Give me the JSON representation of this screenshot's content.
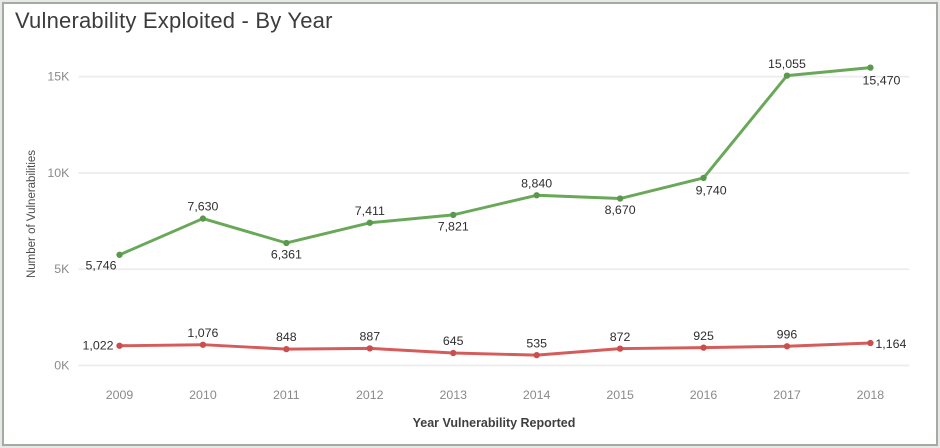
{
  "window": {
    "title": "Vulnerability Exploited - By Year"
  },
  "chart_data": {
    "type": "line",
    "title": "Vulnerability Exploited - By Year",
    "xlabel": "Year Vulnerability Reported",
    "ylabel": "Number of Vulnerabilities",
    "categories": [
      "2009",
      "2010",
      "2011",
      "2012",
      "2013",
      "2014",
      "2015",
      "2016",
      "2017",
      "2018"
    ],
    "yticks": {
      "values": [
        0,
        5000,
        10000,
        15000
      ],
      "labels": [
        "0K",
        "5K",
        "10K",
        "15K"
      ]
    },
    "ylim": [
      0,
      16500
    ],
    "grid": "horizontal-only",
    "legend": "none",
    "colors": {
      "grid": "#ededed",
      "tick_text": "#8a8a8a",
      "label_text": "#2e2e2e"
    },
    "series": [
      {
        "name": "vulnerabilities-reported",
        "color": "#6aa859",
        "marker_color": "#5a984b",
        "values": [
          5746,
          7630,
          6361,
          7411,
          7821,
          8840,
          8670,
          9740,
          15055,
          15470
        ],
        "labels": [
          "5,746",
          "7,630",
          "6,361",
          "7,411",
          "7,821",
          "8,840",
          "8,670",
          "9,740",
          "15,055",
          "15,470"
        ],
        "label_pos": [
          "below-left",
          "above",
          "below",
          "above",
          "below",
          "above",
          "below",
          "below-right",
          "above",
          "below-right"
        ]
      },
      {
        "name": "vulnerabilities-exploited",
        "color": "#d65c5c",
        "marker_color": "#c94f4f",
        "values": [
          1022,
          1076,
          848,
          887,
          645,
          535,
          872,
          925,
          996,
          1164
        ],
        "labels": [
          "1,022",
          "1,076",
          "848",
          "887",
          "645",
          "535",
          "872",
          "925",
          "996",
          "1,164"
        ],
        "label_pos": [
          "left",
          "above",
          "above",
          "above",
          "above",
          "above",
          "above",
          "above",
          "above",
          "right"
        ]
      }
    ]
  }
}
